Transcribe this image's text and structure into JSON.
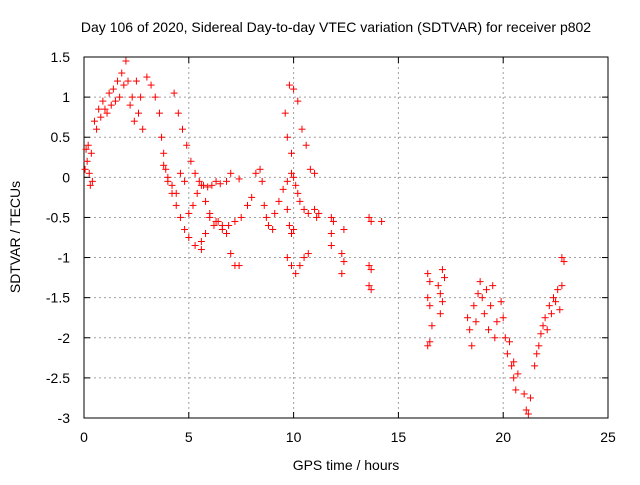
{
  "chart_data": {
    "type": "scatter",
    "title": "Day 106 of 2020, Sidereal Day-to-day VTEC variation (SDTVAR) for receiver p802",
    "xlabel": "GPS time / hours",
    "ylabel": "SDTVAR / TECUs",
    "xlim": [
      0,
      25
    ],
    "ylim": [
      -3,
      1.5
    ],
    "xticks": [
      0,
      5,
      10,
      15,
      20,
      25
    ],
    "xtick_labels": [
      "0",
      "5",
      "10",
      "15",
      "20",
      "25"
    ],
    "yticks": [
      -3,
      -2.5,
      -2,
      -1.5,
      -1,
      -0.5,
      0,
      0.5,
      1,
      1.5
    ],
    "ytick_labels": [
      "-3",
      "-2.5",
      "-2",
      "-1.5",
      "-1",
      "-0.5",
      "0",
      "0.5",
      "1",
      "1.5"
    ],
    "grid": true,
    "marker": "+",
    "color": "#ff0000",
    "series": [
      {
        "name": "SDTVAR",
        "points": [
          [
            0.05,
            0.1
          ],
          [
            0.1,
            0.35
          ],
          [
            0.15,
            0.2
          ],
          [
            0.2,
            0.4
          ],
          [
            0.25,
            0.05
          ],
          [
            0.3,
            -0.1
          ],
          [
            0.35,
            0.3
          ],
          [
            0.4,
            -0.05
          ],
          [
            0.5,
            0.7
          ],
          [
            0.6,
            0.6
          ],
          [
            0.7,
            0.85
          ],
          [
            0.8,
            0.75
          ],
          [
            0.9,
            0.95
          ],
          [
            1.0,
            0.85
          ],
          [
            1.1,
            0.8
          ],
          [
            1.2,
            1.05
          ],
          [
            1.3,
            0.9
          ],
          [
            1.4,
            1.1
          ],
          [
            1.5,
            0.95
          ],
          [
            1.6,
            1.2
          ],
          [
            1.7,
            1.0
          ],
          [
            1.8,
            1.3
          ],
          [
            1.9,
            1.15
          ],
          [
            2.0,
            1.45
          ],
          [
            2.1,
            1.2
          ],
          [
            2.2,
            0.9
          ],
          [
            2.3,
            1.0
          ],
          [
            2.4,
            0.7
          ],
          [
            2.5,
            1.2
          ],
          [
            2.6,
            0.8
          ],
          [
            2.7,
            1.0
          ],
          [
            2.8,
            0.6
          ],
          [
            3.0,
            1.25
          ],
          [
            3.2,
            1.15
          ],
          [
            3.4,
            1.0
          ],
          [
            3.6,
            0.8
          ],
          [
            3.7,
            0.5
          ],
          [
            3.8,
            0.3
          ],
          [
            3.9,
            0.1
          ],
          [
            4.0,
            -0.05
          ],
          [
            4.2,
            -0.2
          ],
          [
            4.4,
            -0.35
          ],
          [
            4.6,
            -0.5
          ],
          [
            4.8,
            -0.65
          ],
          [
            5.0,
            -0.75
          ],
          [
            5.3,
            -0.85
          ],
          [
            5.6,
            -0.9
          ],
          [
            3.8,
            0.15
          ],
          [
            4.0,
            0.0
          ],
          [
            4.2,
            -0.1
          ],
          [
            4.4,
            -0.2
          ],
          [
            4.6,
            0.05
          ],
          [
            4.8,
            -0.05
          ],
          [
            4.3,
            1.05
          ],
          [
            4.5,
            0.8
          ],
          [
            4.7,
            0.6
          ],
          [
            4.9,
            0.4
          ],
          [
            5.1,
            0.2
          ],
          [
            5.3,
            0.05
          ],
          [
            5.5,
            -0.05
          ],
          [
            5.7,
            -0.1
          ],
          [
            5.9,
            -0.12
          ],
          [
            6.1,
            -0.1
          ],
          [
            6.3,
            -0.05
          ],
          [
            6.5,
            -0.08
          ],
          [
            6.8,
            -0.05
          ],
          [
            7.0,
            0.05
          ],
          [
            7.4,
            -0.02
          ],
          [
            5.0,
            -0.45
          ],
          [
            5.2,
            -0.35
          ],
          [
            5.4,
            -0.2
          ],
          [
            5.6,
            -0.1
          ],
          [
            5.8,
            -0.3
          ],
          [
            6.0,
            -0.5
          ],
          [
            6.2,
            -0.6
          ],
          [
            6.4,
            -0.55
          ],
          [
            6.6,
            -0.6
          ],
          [
            6.8,
            -0.7
          ],
          [
            7.0,
            -0.95
          ],
          [
            7.2,
            -1.1
          ],
          [
            7.4,
            -1.1
          ],
          [
            5.6,
            -0.8
          ],
          [
            5.8,
            -0.7
          ],
          [
            6.0,
            -0.45
          ],
          [
            6.3,
            -0.55
          ],
          [
            6.6,
            -0.65
          ],
          [
            6.9,
            -0.6
          ],
          [
            7.2,
            -0.55
          ],
          [
            7.5,
            -0.5
          ],
          [
            7.8,
            -0.35
          ],
          [
            8.0,
            -0.25
          ],
          [
            8.2,
            0.05
          ],
          [
            8.4,
            0.1
          ],
          [
            8.5,
            -0.05
          ],
          [
            8.6,
            -0.35
          ],
          [
            8.7,
            -0.5
          ],
          [
            8.8,
            -0.6
          ],
          [
            9.0,
            -0.65
          ],
          [
            9.1,
            -0.45
          ],
          [
            9.3,
            -0.3
          ],
          [
            9.5,
            -0.15
          ],
          [
            9.7,
            -0.05
          ],
          [
            9.9,
            0.05
          ],
          [
            10.1,
            -0.1
          ],
          [
            10.3,
            -0.3
          ],
          [
            10.5,
            -0.4
          ],
          [
            10.7,
            -0.45
          ],
          [
            9.7,
            -0.4
          ],
          [
            9.8,
            -0.6
          ],
          [
            9.9,
            -0.7
          ],
          [
            10.0,
            -0.65
          ],
          [
            9.6,
            0.8
          ],
          [
            9.7,
            0.5
          ],
          [
            9.9,
            0.3
          ],
          [
            10.0,
            0.0
          ],
          [
            10.2,
            -0.2
          ],
          [
            9.7,
            -1.0
          ],
          [
            9.9,
            -1.1
          ],
          [
            10.1,
            -1.2
          ],
          [
            10.3,
            -1.1
          ],
          [
            10.5,
            -1.0
          ],
          [
            10.7,
            -0.95
          ],
          [
            9.8,
            1.15
          ],
          [
            10.0,
            1.1
          ],
          [
            10.2,
            0.95
          ],
          [
            10.4,
            0.6
          ],
          [
            10.6,
            0.4
          ],
          [
            10.8,
            0.1
          ],
          [
            11.0,
            0.05
          ],
          [
            11.0,
            -0.4
          ],
          [
            11.1,
            -0.5
          ],
          [
            11.2,
            -0.45
          ],
          [
            11.8,
            -0.5
          ],
          [
            11.8,
            -0.7
          ],
          [
            11.9,
            -0.55
          ],
          [
            11.8,
            -0.85
          ],
          [
            12.4,
            -0.65
          ],
          [
            12.3,
            -0.95
          ],
          [
            12.4,
            -1.05
          ],
          [
            12.3,
            -1.2
          ],
          [
            13.6,
            -0.5
          ],
          [
            13.7,
            -0.55
          ],
          [
            13.6,
            -1.1
          ],
          [
            13.7,
            -1.15
          ],
          [
            13.6,
            -1.35
          ],
          [
            13.7,
            -1.4
          ],
          [
            14.2,
            -0.55
          ],
          [
            16.4,
            -1.2
          ],
          [
            16.5,
            -1.3
          ],
          [
            16.4,
            -1.5
          ],
          [
            16.5,
            -1.6
          ],
          [
            16.6,
            -1.85
          ],
          [
            16.5,
            -2.05
          ],
          [
            16.4,
            -2.1
          ],
          [
            16.9,
            -1.35
          ],
          [
            17.0,
            -1.45
          ],
          [
            17.1,
            -1.55
          ],
          [
            17.0,
            -1.7
          ],
          [
            17.2,
            -1.25
          ],
          [
            17.1,
            -1.15
          ],
          [
            18.3,
            -1.75
          ],
          [
            18.4,
            -1.9
          ],
          [
            18.5,
            -2.1
          ],
          [
            18.6,
            -1.6
          ],
          [
            18.7,
            -1.8
          ],
          [
            18.8,
            -1.45
          ],
          [
            18.9,
            -1.3
          ],
          [
            19.0,
            -1.5
          ],
          [
            19.1,
            -1.7
          ],
          [
            19.2,
            -1.4
          ],
          [
            19.3,
            -1.9
          ],
          [
            19.4,
            -1.6
          ],
          [
            19.5,
            -1.35
          ],
          [
            19.6,
            -2.0
          ],
          [
            19.7,
            -1.8
          ],
          [
            19.9,
            -1.55
          ],
          [
            20.0,
            -1.75
          ],
          [
            20.1,
            -2.0
          ],
          [
            20.2,
            -2.2
          ],
          [
            20.3,
            -2.05
          ],
          [
            20.4,
            -2.35
          ],
          [
            20.5,
            -2.5
          ],
          [
            20.6,
            -2.65
          ],
          [
            20.7,
            -2.45
          ],
          [
            20.5,
            -2.3
          ],
          [
            21.0,
            -2.7
          ],
          [
            21.1,
            -2.9
          ],
          [
            21.2,
            -2.95
          ],
          [
            21.3,
            -2.75
          ],
          [
            21.5,
            -2.35
          ],
          [
            21.6,
            -2.2
          ],
          [
            21.7,
            -2.1
          ],
          [
            21.8,
            -1.95
          ],
          [
            21.9,
            -1.85
          ],
          [
            22.0,
            -1.75
          ],
          [
            22.1,
            -1.9
          ],
          [
            22.2,
            -1.6
          ],
          [
            22.3,
            -1.7
          ],
          [
            22.4,
            -1.5
          ],
          [
            22.5,
            -1.55
          ],
          [
            22.6,
            -1.4
          ],
          [
            22.7,
            -1.65
          ],
          [
            22.8,
            -1.35
          ],
          [
            22.8,
            -1.0
          ],
          [
            22.9,
            -1.05
          ]
        ]
      }
    ]
  }
}
